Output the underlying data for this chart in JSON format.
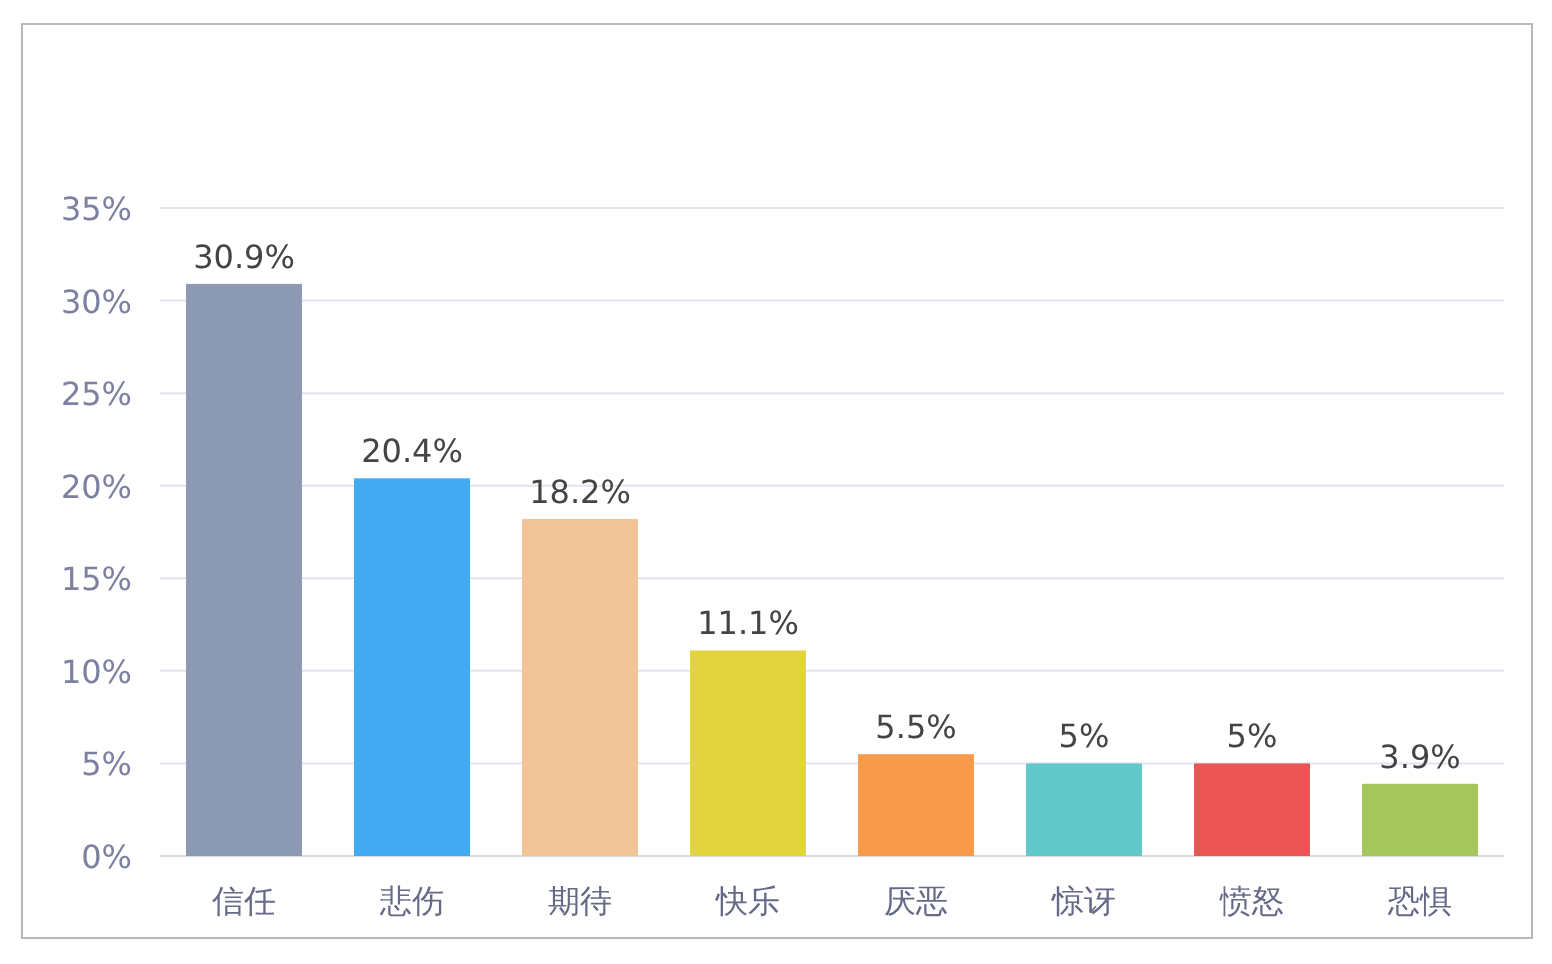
{
  "chart_data": {
    "type": "bar",
    "categories": [
      "信任",
      "悲伤",
      "期待",
      "快乐",
      "厌恶",
      "惊讶",
      "愤怒",
      "恐惧"
    ],
    "values": [
      30.9,
      20.4,
      18.2,
      11.1,
      5.5,
      5,
      5,
      3.9
    ],
    "colors": [
      "#8c9ab5",
      "#42aaf0",
      "#f0c496",
      "#e3d43f",
      "#f79a4a",
      "#62c8c9",
      "#ea5455",
      "#a5c65a"
    ],
    "value_labels": [
      "30.9%",
      "20.4%",
      "18.2%",
      "11.1%",
      "5.5%",
      "5%",
      "5%",
      "3.9%"
    ],
    "ylim": [
      0,
      35
    ],
    "yticks": [
      {
        "value": 0,
        "label": "0%"
      },
      {
        "value": 5,
        "label": "5%"
      },
      {
        "value": 10,
        "label": "10%"
      },
      {
        "value": 15,
        "label": "15%"
      },
      {
        "value": 20,
        "label": "20%"
      },
      {
        "value": 25,
        "label": "25%"
      },
      {
        "value": 30,
        "label": "30%"
      },
      {
        "value": 35,
        "label": "35%"
      }
    ],
    "grid": "y"
  }
}
